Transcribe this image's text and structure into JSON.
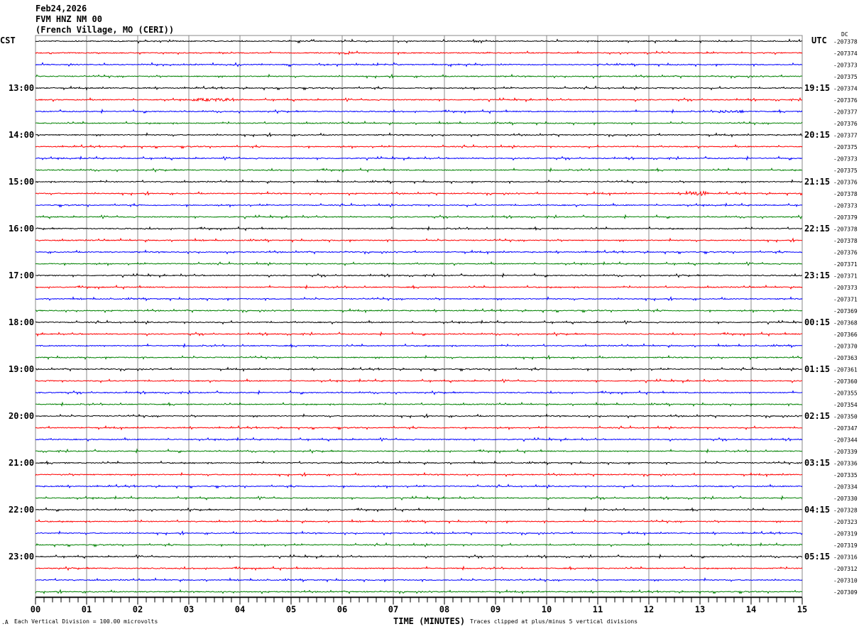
{
  "chart_data": {
    "type": "line",
    "title_lines": [
      "Feb24,2026",
      "FVM HNZ NM 00",
      "(French Village, MO (CERI))"
    ],
    "left_axis_label": "CST",
    "right_axis_label": "UTC",
    "dc_label": "DC",
    "xlabel": "TIME (MINUTES)",
    "x_ticks": [
      "00",
      "01",
      "02",
      "03",
      "04",
      "05",
      "06",
      "07",
      "08",
      "09",
      "10",
      "11",
      "12",
      "13",
      "14",
      "15"
    ],
    "xlim": [
      0,
      15
    ],
    "left_hour_labels": [
      "13:00",
      "14:00",
      "15:00",
      "16:00",
      "17:00",
      "18:00",
      "19:00",
      "20:00",
      "21:00",
      "22:00",
      "23:00"
    ],
    "right_hour_labels": [
      "19:15",
      "20:15",
      "21:15",
      "22:15",
      "23:15",
      "00:15",
      "01:15",
      "02:15",
      "03:15",
      "04:15",
      "05:15"
    ],
    "dc_offsets": [
      -207378,
      -207374,
      -207373,
      -207375,
      -207374,
      -207376,
      -207377,
      -207376,
      -207377,
      -207375,
      -207373,
      -207375,
      -207376,
      -207378,
      -207373,
      -207379,
      -207378,
      -207378,
      -207376,
      -207371,
      -207371,
      -207373,
      -207371,
      -207369,
      -207368,
      -207366,
      -207370,
      -207363,
      -207361,
      -207360,
      -207355,
      -207354,
      -207350,
      -207347,
      -207344,
      -207339,
      -207336,
      -207335,
      -207334,
      -207330,
      -207328,
      -207323,
      -207319,
      -207319,
      -207316,
      -207312,
      -207310,
      -207309
    ],
    "trace_colors": [
      "#000000",
      "#ff0000",
      "#0000ff",
      "#008000"
    ],
    "grid": true,
    "footer_scale": "Each Vertical Division =  100.00 microvolts",
    "footer_clip": "Traces clipped at plus/minus 5 vertical divisions"
  }
}
